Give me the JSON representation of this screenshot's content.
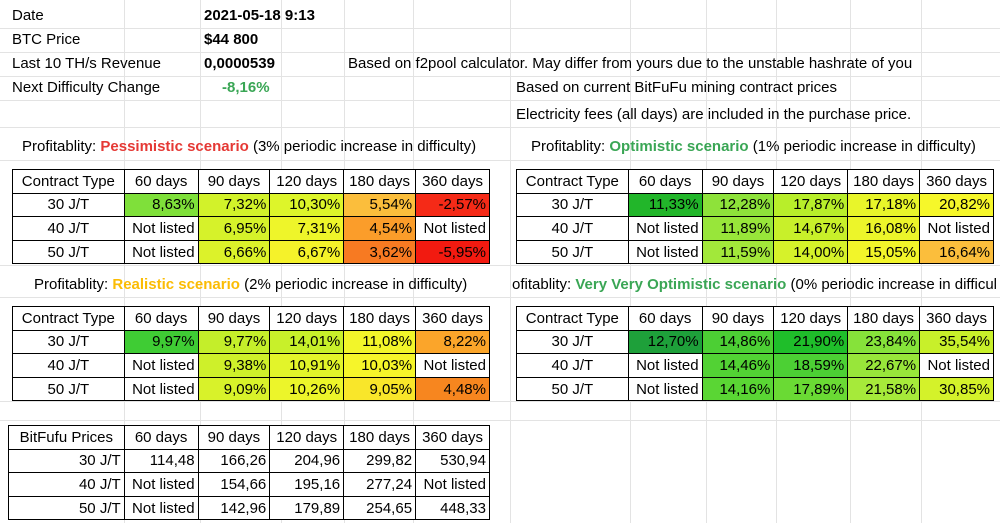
{
  "info": {
    "date_label": "Date",
    "date_value": "2021-05-18 9:13",
    "btc_label": "BTC Price",
    "btc_value": "$44 800",
    "revenue_label": "Last 10 TH/s Revenue",
    "revenue_value": "0,0000539",
    "revenue_note": "Based on f2pool calculator. May differ from yours due to the unstable hashrate of you",
    "difficulty_label": "Next Difficulty Change",
    "difficulty_value": "-8,16%",
    "contract_note": "Based on current BitFuFu mining contract prices",
    "electricity_note": "Electricity fees (all days) are included in the purchase price."
  },
  "colors": {
    "pessimistic": "#e53935",
    "optimistic": "#3aa655",
    "realistic": "#fbbc04"
  },
  "tables": {
    "pessimistic": {
      "title_prefix": "Profitablity: ",
      "scenario": "Pessimistic scenario",
      "title_suffix": " (3% periodic increase in difficulty)",
      "header": [
        "Contract Type",
        "60 days",
        "90 days",
        "120 days",
        "180 days",
        "360 days"
      ],
      "rows": [
        {
          "label": "30 J/T",
          "cells": [
            [
              "8,63%",
              "#7fe03a"
            ],
            [
              "7,32%",
              "#d2f22a"
            ],
            [
              "10,30%",
              "#ddf52a"
            ],
            [
              "5,54%",
              "#fbbe3c"
            ],
            [
              "-2,57%",
              "#f52a17"
            ]
          ]
        },
        {
          "label": "40 J/T",
          "cells": [
            [
              "Not listed",
              "#ffffff"
            ],
            [
              "6,95%",
              "#d6f22a"
            ],
            [
              "7,31%",
              "#eef52a"
            ],
            [
              "4,54%",
              "#fb9d2a"
            ],
            [
              "Not listed",
              "#ffffff"
            ]
          ]
        },
        {
          "label": "50 J/T",
          "cells": [
            [
              "Not listed",
              "#ffffff"
            ],
            [
              "6,66%",
              "#dcf22a"
            ],
            [
              "6,67%",
              "#f5f22a"
            ],
            [
              "3,62%",
              "#f77a22"
            ],
            [
              "-5,95%",
              "#f21a10"
            ]
          ]
        }
      ]
    },
    "optimistic": {
      "title_prefix": "Profitablity: ",
      "scenario": "Optimistic scenario",
      "title_suffix": " (1% periodic increase in difficulty)",
      "header": [
        "Contract Type",
        "60 days",
        "90 days",
        "120 days",
        "180 days",
        "360 days"
      ],
      "rows": [
        {
          "label": "30 J/T",
          "cells": [
            [
              "11,33%",
              "#22b62a"
            ],
            [
              "12,28%",
              "#8ee23a"
            ],
            [
              "17,87%",
              "#b8ee2a"
            ],
            [
              "17,18%",
              "#e8f52a"
            ],
            [
              "20,82%",
              "#f6f72a"
            ]
          ]
        },
        {
          "label": "40 J/T",
          "cells": [
            [
              "Not listed",
              "#ffffff"
            ],
            [
              "11,89%",
              "#98e63a"
            ],
            [
              "14,67%",
              "#c8f02a"
            ],
            [
              "16,08%",
              "#ecf52a"
            ],
            [
              "Not listed",
              "#ffffff"
            ]
          ]
        },
        {
          "label": "50 J/T",
          "cells": [
            [
              "Not listed",
              "#ffffff"
            ],
            [
              "11,59%",
              "#a2e83a"
            ],
            [
              "14,00%",
              "#d6f22a"
            ],
            [
              "15,05%",
              "#f2f52a"
            ],
            [
              "16,64%",
              "#fbbe3c"
            ]
          ]
        }
      ]
    },
    "realistic": {
      "title_prefix": "Profitablity: ",
      "scenario": "Realistic scenario",
      "title_suffix": " (2% periodic increase in difficulty)",
      "header": [
        "Contract Type",
        "60 days",
        "90 days",
        "120 days",
        "180 days",
        "360 days"
      ],
      "rows": [
        {
          "label": "30 J/T",
          "cells": [
            [
              "9,97%",
              "#3fcc34"
            ],
            [
              "9,77%",
              "#c4ee2a"
            ],
            [
              "14,01%",
              "#c8f02a"
            ],
            [
              "11,08%",
              "#f2f52a"
            ],
            [
              "8,22%",
              "#fba52a"
            ]
          ]
        },
        {
          "label": "40 J/T",
          "cells": [
            [
              "Not listed",
              "#ffffff"
            ],
            [
              "9,38%",
              "#cef02a"
            ],
            [
              "10,91%",
              "#e2f42a"
            ],
            [
              "10,03%",
              "#f6f52a"
            ],
            [
              "Not listed",
              "#ffffff"
            ]
          ]
        },
        {
          "label": "50 J/T",
          "cells": [
            [
              "Not listed",
              "#ffffff"
            ],
            [
              "9,09%",
              "#d8f22a"
            ],
            [
              "10,26%",
              "#ecf52a"
            ],
            [
              "9,05%",
              "#f9e62a"
            ],
            [
              "4,48%",
              "#f7861f"
            ]
          ]
        }
      ]
    },
    "very_optimistic": {
      "title_prefix": "ofitablity: ",
      "scenario": "Very Very Optimistic scenario",
      "title_suffix": " (0% periodic increase in difficul",
      "header": [
        "Contract Type",
        "60 days",
        "90 days",
        "120 days",
        "180 days",
        "360 days"
      ],
      "rows": [
        {
          "label": "30 J/T",
          "cells": [
            [
              "12,70%",
              "#1ea03a"
            ],
            [
              "14,86%",
              "#4ccf34"
            ],
            [
              "21,90%",
              "#1fbe2a"
            ],
            [
              "23,84%",
              "#86e23a"
            ],
            [
              "35,54%",
              "#c8f02a"
            ]
          ]
        },
        {
          "label": "40 J/T",
          "cells": [
            [
              "Not listed",
              "#ffffff"
            ],
            [
              "14,46%",
              "#52d234"
            ],
            [
              "18,59%",
              "#4cd034"
            ],
            [
              "22,67%",
              "#98e63a"
            ],
            [
              "Not listed",
              "#ffffff"
            ]
          ]
        },
        {
          "label": "50 J/T",
          "cells": [
            [
              "Not listed",
              "#ffffff"
            ],
            [
              "14,16%",
              "#5ad634"
            ],
            [
              "17,89%",
              "#6ada34"
            ],
            [
              "21,58%",
              "#a6ea3a"
            ],
            [
              "30,85%",
              "#d4f22a"
            ]
          ]
        }
      ]
    }
  },
  "prices": {
    "header": [
      "BitFufu Prices",
      "60 days",
      "90 days",
      "120 days",
      "180 days",
      "360 days"
    ],
    "rows": [
      {
        "label": "30 J/T",
        "cells": [
          "114,48",
          "166,26",
          "204,96",
          "299,82",
          "530,94"
        ]
      },
      {
        "label": "40 J/T",
        "cells": [
          "Not listed",
          "154,66",
          "195,16",
          "277,24",
          "Not listed"
        ]
      },
      {
        "label": "50 J/T",
        "cells": [
          "Not listed",
          "142,96",
          "179,89",
          "254,65",
          "448,33"
        ]
      }
    ]
  }
}
